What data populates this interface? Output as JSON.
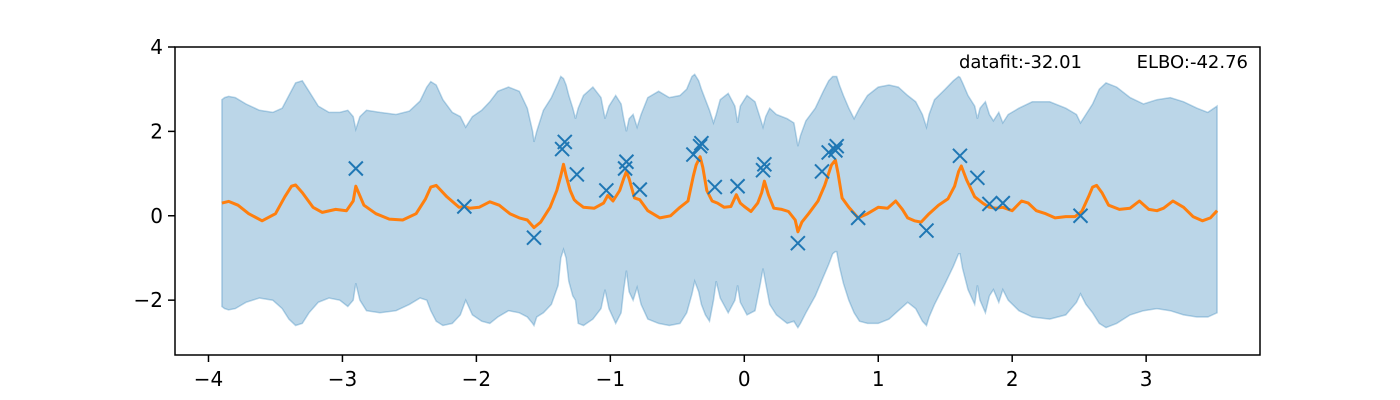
{
  "chart_data": {
    "type": "line",
    "title": "",
    "xlabel": "",
    "ylabel": "",
    "xlim": [
      -4.25,
      3.85
    ],
    "ylim": [
      -3.3,
      4.0
    ],
    "x_ticks": [
      -4,
      -3,
      -2,
      -1,
      0,
      1,
      2,
      3
    ],
    "x_tick_labels": [
      "−4",
      "−3",
      "−2",
      "−1",
      "0",
      "1",
      "2",
      "3"
    ],
    "y_ticks": [
      -2,
      0,
      2,
      4
    ],
    "y_tick_labels": [
      "−2",
      "0",
      "2",
      "4"
    ],
    "grid": false,
    "annotations": {
      "datafit": "datafit:-32.01",
      "elbo": "ELBO:-42.76"
    },
    "colors": {
      "mean": "#ff7f0e",
      "band": "#1f77b4",
      "points": "#1f77b4"
    },
    "points": [
      {
        "x": -2.9,
        "y": 1.12
      },
      {
        "x": -2.09,
        "y": 0.22
      },
      {
        "x": -1.57,
        "y": -0.52
      },
      {
        "x": -1.36,
        "y": 1.58
      },
      {
        "x": -1.34,
        "y": 1.75
      },
      {
        "x": -1.25,
        "y": 0.98
      },
      {
        "x": -1.03,
        "y": 0.6
      },
      {
        "x": -0.89,
        "y": 1.12
      },
      {
        "x": -0.88,
        "y": 1.28
      },
      {
        "x": -0.78,
        "y": 0.62
      },
      {
        "x": -0.38,
        "y": 1.45
      },
      {
        "x": -0.33,
        "y": 1.65
      },
      {
        "x": -0.32,
        "y": 1.72
      },
      {
        "x": -0.22,
        "y": 0.68
      },
      {
        "x": -0.05,
        "y": 0.7
      },
      {
        "x": 0.14,
        "y": 1.08
      },
      {
        "x": 0.15,
        "y": 1.22
      },
      {
        "x": 0.4,
        "y": -0.65
      },
      {
        "x": 0.58,
        "y": 1.05
      },
      {
        "x": 0.63,
        "y": 1.5
      },
      {
        "x": 0.68,
        "y": 1.55
      },
      {
        "x": 0.69,
        "y": 1.65
      },
      {
        "x": 0.85,
        "y": -0.05
      },
      {
        "x": 1.36,
        "y": -0.35
      },
      {
        "x": 1.61,
        "y": 1.42
      },
      {
        "x": 1.74,
        "y": 0.9
      },
      {
        "x": 1.83,
        "y": 0.28
      },
      {
        "x": 1.93,
        "y": 0.3
      },
      {
        "x": 2.51,
        "y": 0.0
      }
    ],
    "mean_line": {
      "x": [
        -3.9,
        -3.85,
        -3.78,
        -3.7,
        -3.6,
        -3.5,
        -3.43,
        -3.38,
        -3.35,
        -3.3,
        -3.22,
        -3.15,
        -3.05,
        -2.97,
        -2.92,
        -2.9,
        -2.88,
        -2.84,
        -2.75,
        -2.65,
        -2.55,
        -2.45,
        -2.38,
        -2.34,
        -2.3,
        -2.22,
        -2.13,
        -2.09,
        -2.05,
        -1.98,
        -1.9,
        -1.83,
        -1.75,
        -1.68,
        -1.62,
        -1.57,
        -1.52,
        -1.45,
        -1.4,
        -1.37,
        -1.35,
        -1.33,
        -1.3,
        -1.27,
        -1.25,
        -1.2,
        -1.12,
        -1.05,
        -1.02,
        -0.98,
        -0.93,
        -0.9,
        -0.88,
        -0.86,
        -0.82,
        -0.78,
        -0.72,
        -0.63,
        -0.55,
        -0.48,
        -0.42,
        -0.38,
        -0.36,
        -0.33,
        -0.31,
        -0.28,
        -0.24,
        -0.2,
        -0.15,
        -0.1,
        -0.06,
        -0.03,
        0.0,
        0.05,
        0.1,
        0.13,
        0.15,
        0.18,
        0.22,
        0.28,
        0.33,
        0.38,
        0.4,
        0.43,
        0.48,
        0.55,
        0.6,
        0.65,
        0.68,
        0.7,
        0.73,
        0.78,
        0.85,
        0.92,
        1.0,
        1.07,
        1.13,
        1.18,
        1.22,
        1.27,
        1.32,
        1.38,
        1.45,
        1.52,
        1.57,
        1.6,
        1.62,
        1.66,
        1.72,
        1.78,
        1.83,
        1.88,
        1.93,
        2.0,
        2.07,
        2.12,
        2.18,
        2.25,
        2.32,
        2.4,
        2.47,
        2.52,
        2.57,
        2.6,
        2.63,
        2.67,
        2.72,
        2.8,
        2.88,
        2.95,
        3.02,
        3.08,
        3.13,
        3.2,
        3.28,
        3.35,
        3.42,
        3.48,
        3.53
      ],
      "y": [
        0.3,
        0.34,
        0.25,
        0.05,
        -0.12,
        0.05,
        0.45,
        0.7,
        0.73,
        0.55,
        0.2,
        0.08,
        0.15,
        0.12,
        0.35,
        0.7,
        0.55,
        0.25,
        0.05,
        -0.08,
        -0.1,
        0.05,
        0.4,
        0.68,
        0.72,
        0.45,
        0.2,
        0.22,
        0.18,
        0.2,
        0.33,
        0.25,
        0.05,
        -0.05,
        -0.1,
        -0.28,
        -0.15,
        0.2,
        0.6,
        0.95,
        1.22,
        0.95,
        0.6,
        0.38,
        0.32,
        0.2,
        0.18,
        0.3,
        0.48,
        0.35,
        0.6,
        0.88,
        1.05,
        0.88,
        0.42,
        0.38,
        0.12,
        -0.05,
        0.0,
        0.2,
        0.35,
        0.95,
        1.2,
        1.4,
        1.15,
        0.6,
        0.35,
        0.3,
        0.2,
        0.22,
        0.5,
        0.3,
        0.22,
        0.1,
        0.3,
        0.55,
        0.82,
        0.5,
        0.18,
        0.15,
        0.1,
        -0.1,
        -0.38,
        -0.15,
        0.05,
        0.35,
        0.72,
        1.2,
        1.32,
        1.0,
        0.42,
        0.2,
        -0.05,
        0.05,
        0.2,
        0.18,
        0.35,
        0.15,
        -0.05,
        -0.12,
        -0.15,
        0.05,
        0.25,
        0.4,
        0.7,
        1.05,
        1.18,
        0.85,
        0.45,
        0.3,
        0.2,
        0.18,
        0.2,
        0.12,
        0.35,
        0.3,
        0.12,
        0.05,
        -0.05,
        -0.02,
        -0.02,
        0.1,
        0.45,
        0.68,
        0.72,
        0.55,
        0.25,
        0.15,
        0.18,
        0.35,
        0.15,
        0.12,
        0.18,
        0.35,
        0.2,
        -0.02,
        -0.12,
        -0.05,
        0.12
      ]
    },
    "upper_band": {
      "x": [
        -3.9,
        -3.88,
        -3.85,
        -3.8,
        -3.72,
        -3.62,
        -3.52,
        -3.45,
        -3.4,
        -3.35,
        -3.3,
        -3.25,
        -3.18,
        -3.1,
        -3.02,
        -2.96,
        -2.92,
        -2.9,
        -2.87,
        -2.82,
        -2.72,
        -2.6,
        -2.5,
        -2.42,
        -2.37,
        -2.34,
        -2.3,
        -2.25,
        -2.18,
        -2.12,
        -2.08,
        -2.03,
        -1.96,
        -1.9,
        -1.84,
        -1.76,
        -1.68,
        -1.62,
        -1.58,
        -1.57,
        -1.55,
        -1.5,
        -1.44,
        -1.39,
        -1.37,
        -1.35,
        -1.33,
        -1.31,
        -1.28,
        -1.26,
        -1.24,
        -1.2,
        -1.13,
        -1.07,
        -1.04,
        -1.01,
        -0.96,
        -0.92,
        -0.9,
        -0.88,
        -0.86,
        -0.83,
        -0.8,
        -0.77,
        -0.72,
        -0.64,
        -0.56,
        -0.48,
        -0.43,
        -0.39,
        -0.37,
        -0.34,
        -0.32,
        -0.29,
        -0.26,
        -0.23,
        -0.21,
        -0.18,
        -0.12,
        -0.07,
        -0.05,
        -0.03,
        0.02,
        0.08,
        0.12,
        0.14,
        0.16,
        0.19,
        0.24,
        0.32,
        0.37,
        0.39,
        0.4,
        0.42,
        0.46,
        0.53,
        0.59,
        0.63,
        0.66,
        0.68,
        0.69,
        0.71,
        0.74,
        0.78,
        0.82,
        0.86,
        0.92,
        1.0,
        1.08,
        1.15,
        1.22,
        1.28,
        1.33,
        1.36,
        1.38,
        1.42,
        1.5,
        1.56,
        1.6,
        1.61,
        1.63,
        1.67,
        1.72,
        1.74,
        1.76,
        1.8,
        1.83,
        1.86,
        1.9,
        1.93,
        1.97,
        2.05,
        2.15,
        2.28,
        2.4,
        2.48,
        2.51,
        2.55,
        2.6,
        2.65,
        2.7,
        2.78,
        2.88,
        2.98,
        3.08,
        3.18,
        3.28,
        3.38,
        3.46,
        3.53
      ],
      "y": [
        2.75,
        2.8,
        2.83,
        2.8,
        2.65,
        2.5,
        2.45,
        2.55,
        2.85,
        3.15,
        3.2,
        2.95,
        2.6,
        2.45,
        2.45,
        2.5,
        2.35,
        2.05,
        2.35,
        2.5,
        2.45,
        2.4,
        2.48,
        2.72,
        3.05,
        3.18,
        3.1,
        2.75,
        2.45,
        2.35,
        2.1,
        2.35,
        2.5,
        2.7,
        2.95,
        3.05,
        2.95,
        2.55,
        2.0,
        1.75,
        2.0,
        2.5,
        2.8,
        3.15,
        3.3,
        3.25,
        3.1,
        2.85,
        2.55,
        2.3,
        2.55,
        2.85,
        3.05,
        2.8,
        2.3,
        2.6,
        2.85,
        2.65,
        2.3,
        2.0,
        2.3,
        2.4,
        2.1,
        2.4,
        2.8,
        2.95,
        2.8,
        2.85,
        3.0,
        3.3,
        3.35,
        3.2,
        3.0,
        2.75,
        2.5,
        2.2,
        2.4,
        2.75,
        2.9,
        2.6,
        2.2,
        2.6,
        2.85,
        2.7,
        2.3,
        2.1,
        2.35,
        2.55,
        2.4,
        2.3,
        2.2,
        1.85,
        1.65,
        1.9,
        2.25,
        2.55,
        2.95,
        3.2,
        3.3,
        3.3,
        3.3,
        3.1,
        2.85,
        2.55,
        2.3,
        2.55,
        2.85,
        3.05,
        3.1,
        3.05,
        2.85,
        2.7,
        2.4,
        2.1,
        2.4,
        2.75,
        3.0,
        3.2,
        3.3,
        3.28,
        3.15,
        2.85,
        2.6,
        2.3,
        2.55,
        2.7,
        2.4,
        2.25,
        2.45,
        2.2,
        2.4,
        2.55,
        2.7,
        2.7,
        2.55,
        2.4,
        2.2,
        2.4,
        2.65,
        3.0,
        3.15,
        3.05,
        2.8,
        2.65,
        2.75,
        2.8,
        2.7,
        2.55,
        2.45,
        2.6
      ]
    },
    "lower_band": {
      "x": [
        -3.9,
        -3.88,
        -3.85,
        -3.8,
        -3.72,
        -3.62,
        -3.52,
        -3.45,
        -3.4,
        -3.35,
        -3.3,
        -3.25,
        -3.18,
        -3.1,
        -3.02,
        -2.96,
        -2.92,
        -2.9,
        -2.87,
        -2.82,
        -2.72,
        -2.6,
        -2.5,
        -2.42,
        -2.37,
        -2.34,
        -2.3,
        -2.25,
        -2.18,
        -2.12,
        -2.08,
        -2.03,
        -1.96,
        -1.9,
        -1.84,
        -1.76,
        -1.68,
        -1.62,
        -1.58,
        -1.57,
        -1.55,
        -1.5,
        -1.44,
        -1.39,
        -1.37,
        -1.35,
        -1.33,
        -1.31,
        -1.28,
        -1.26,
        -1.24,
        -1.2,
        -1.13,
        -1.07,
        -1.04,
        -1.01,
        -0.96,
        -0.92,
        -0.9,
        -0.88,
        -0.86,
        -0.83,
        -0.8,
        -0.77,
        -0.72,
        -0.64,
        -0.56,
        -0.48,
        -0.43,
        -0.39,
        -0.37,
        -0.34,
        -0.32,
        -0.29,
        -0.26,
        -0.23,
        -0.21,
        -0.18,
        -0.12,
        -0.07,
        -0.05,
        -0.03,
        0.02,
        0.08,
        0.12,
        0.14,
        0.16,
        0.19,
        0.24,
        0.32,
        0.37,
        0.39,
        0.4,
        0.42,
        0.46,
        0.53,
        0.59,
        0.63,
        0.66,
        0.68,
        0.69,
        0.71,
        0.74,
        0.78,
        0.82,
        0.86,
        0.92,
        1.0,
        1.08,
        1.15,
        1.22,
        1.28,
        1.33,
        1.36,
        1.38,
        1.42,
        1.5,
        1.56,
        1.6,
        1.61,
        1.63,
        1.67,
        1.72,
        1.74,
        1.76,
        1.8,
        1.83,
        1.86,
        1.9,
        1.93,
        1.97,
        2.05,
        2.15,
        2.28,
        2.4,
        2.48,
        2.51,
        2.55,
        2.6,
        2.65,
        2.7,
        2.78,
        2.88,
        2.98,
        3.08,
        3.18,
        3.28,
        3.38,
        3.46,
        3.53
      ],
      "y": [
        -2.15,
        -2.2,
        -2.23,
        -2.2,
        -2.05,
        -1.95,
        -2.0,
        -2.2,
        -2.45,
        -2.6,
        -2.55,
        -2.3,
        -2.05,
        -1.95,
        -2.0,
        -2.15,
        -2.0,
        -1.6,
        -2.0,
        -2.25,
        -2.3,
        -2.25,
        -2.1,
        -1.95,
        -2.0,
        -2.25,
        -2.5,
        -2.6,
        -2.55,
        -2.35,
        -2.0,
        -2.35,
        -2.5,
        -2.55,
        -2.4,
        -2.25,
        -2.3,
        -2.4,
        -2.55,
        -2.6,
        -2.4,
        -2.3,
        -2.1,
        -1.65,
        -1.0,
        -0.8,
        -1.0,
        -1.55,
        -1.9,
        -2.0,
        -2.55,
        -2.6,
        -2.45,
        -2.2,
        -1.75,
        -2.2,
        -2.55,
        -2.3,
        -1.75,
        -1.3,
        -1.8,
        -2.0,
        -1.7,
        -2.1,
        -2.45,
        -2.55,
        -2.6,
        -2.55,
        -2.3,
        -1.85,
        -1.55,
        -1.8,
        -2.1,
        -2.35,
        -2.5,
        -2.0,
        -1.55,
        -1.95,
        -2.3,
        -2.0,
        -1.65,
        -2.05,
        -2.35,
        -2.25,
        -1.6,
        -1.25,
        -1.6,
        -2.1,
        -2.35,
        -2.55,
        -2.5,
        -2.6,
        -2.65,
        -2.55,
        -2.3,
        -1.9,
        -1.45,
        -1.15,
        -0.9,
        -0.85,
        -0.85,
        -1.2,
        -1.6,
        -2.0,
        -2.3,
        -2.5,
        -2.55,
        -2.55,
        -2.45,
        -2.25,
        -2.05,
        -2.2,
        -2.5,
        -2.6,
        -2.4,
        -2.1,
        -1.6,
        -1.2,
        -0.9,
        -0.9,
        -1.25,
        -1.75,
        -2.1,
        -1.65,
        -2.0,
        -2.3,
        -1.9,
        -1.75,
        -2.05,
        -1.75,
        -2.0,
        -2.25,
        -2.4,
        -2.45,
        -2.35,
        -2.05,
        -1.85,
        -2.1,
        -2.3,
        -2.55,
        -2.65,
        -2.55,
        -2.35,
        -2.25,
        -2.2,
        -2.25,
        -2.35,
        -2.4,
        -2.4,
        -2.3
      ]
    }
  }
}
